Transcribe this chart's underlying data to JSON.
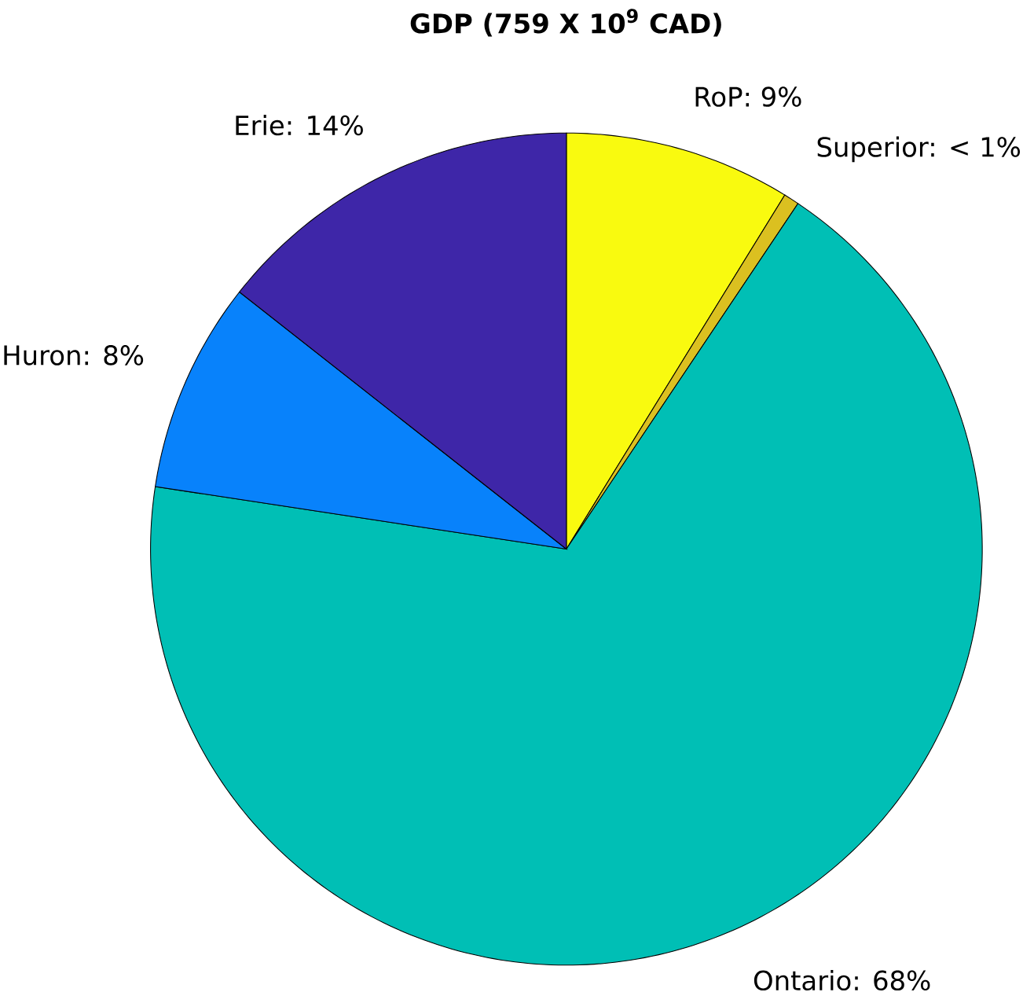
{
  "chart_data": {
    "type": "pie",
    "title": "**GDP (759 X 10$^{9}$ CAD)**",
    "categories": [
      "RoP: 9%",
      "Superior: < 1%",
      "Ontario: 68%",
      "Huron: 8%",
      "Erie: 14%"
    ],
    "values": [
      8.8,
      0.6,
      68.0,
      8.2,
      14.4
    ],
    "colors": [
      "#f9fa0f",
      "#dbc020",
      "#00bfb5",
      "#0882fb",
      "#3e26a8"
    ]
  }
}
